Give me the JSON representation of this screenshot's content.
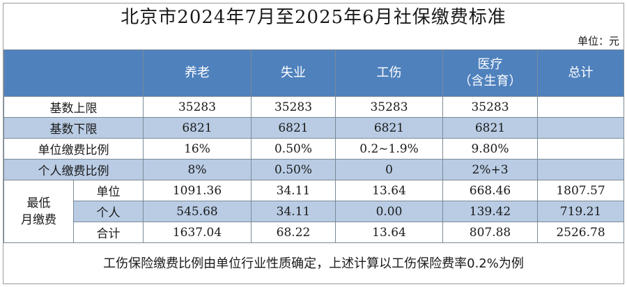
{
  "title": "北京市2024年7月至2025年6月社保缴费标准",
  "unit_label": "单位：元",
  "columns": [
    "养老",
    "失业",
    "工伤",
    "医疗\n（含生育）",
    "总计"
  ],
  "rows": [
    {
      "label": "基数上限",
      "cells": [
        "35283",
        "35283",
        "35283",
        "35283",
        ""
      ]
    },
    {
      "label": "基数下限",
      "cells": [
        "6821",
        "6821",
        "6821",
        "6821",
        ""
      ]
    },
    {
      "label": "单位缴费比例",
      "cells": [
        "16%",
        "0.50%",
        "0.2~1.9%",
        "9.80%",
        ""
      ]
    },
    {
      "label": "个人缴费比例",
      "cells": [
        "8%",
        "0.50%",
        "0",
        "2%+3",
        ""
      ]
    }
  ],
  "min_monthly": {
    "group_label": "最低\n月缴费",
    "rows": [
      {
        "label": "单位",
        "cells": [
          "1091.36",
          "34.11",
          "13.64",
          "668.46",
          "1807.57"
        ]
      },
      {
        "label": "个人",
        "cells": [
          "545.68",
          "34.11",
          "0.00",
          "139.42",
          "719.21"
        ]
      },
      {
        "label": "合计",
        "cells": [
          "1637.04",
          "68.22",
          "13.64",
          "807.88",
          "2526.78"
        ]
      }
    ]
  },
  "note": "工伤保险缴费比例由单位行业性质确定，上述计算以工伤保险费率0.2%为例"
}
